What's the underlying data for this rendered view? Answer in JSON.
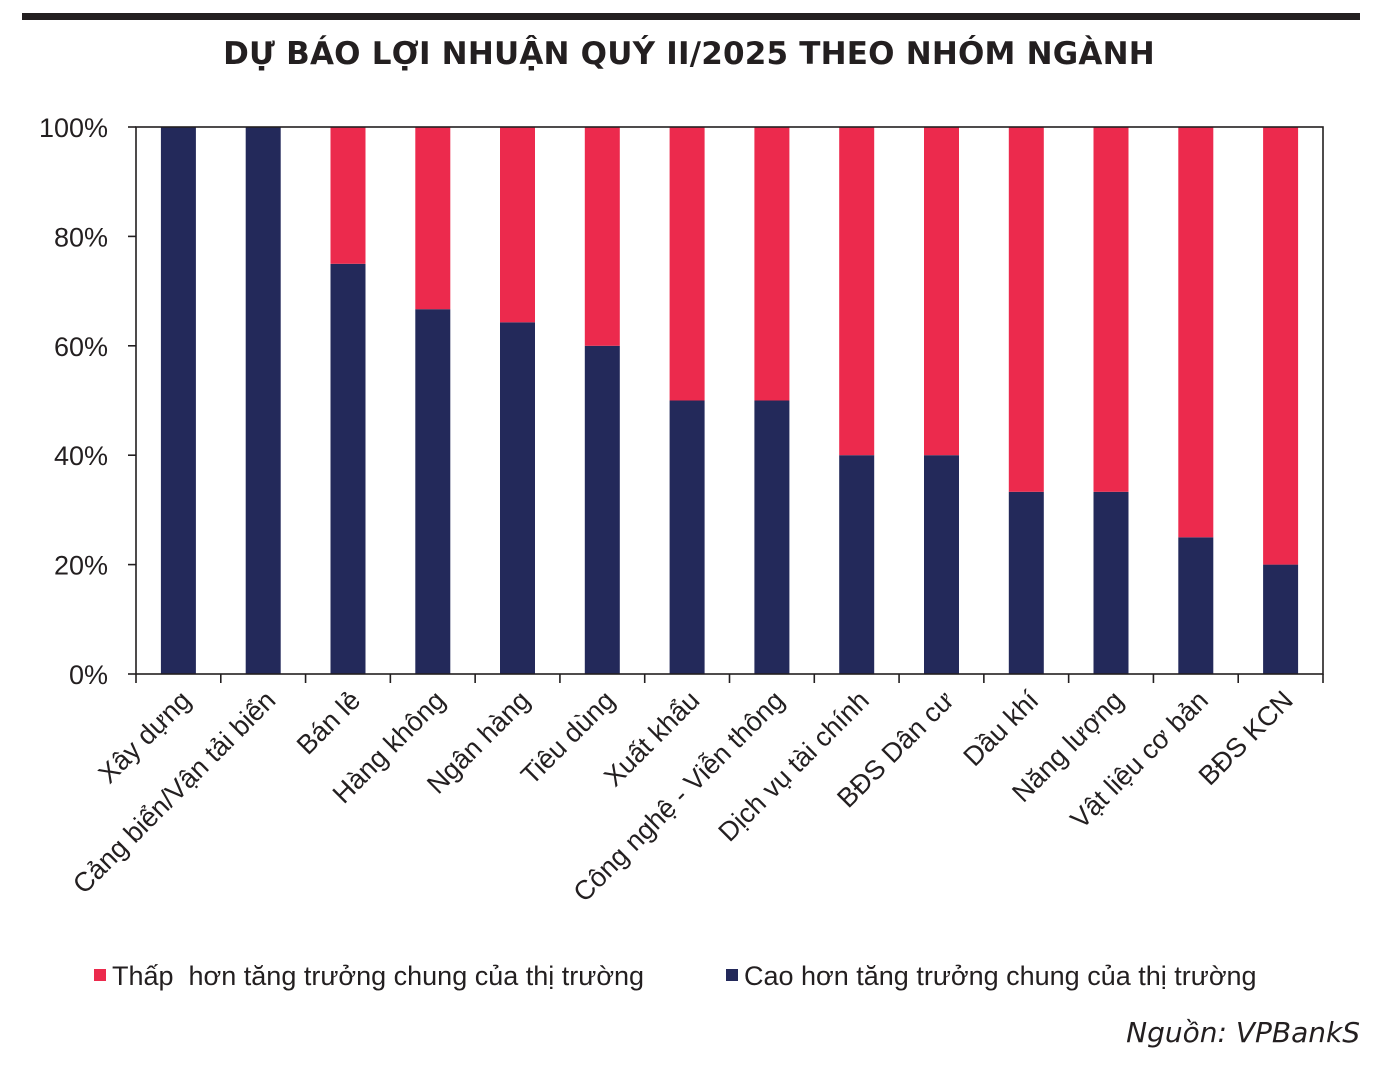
{
  "title": "DỰ BÁO LỢI NHUẬN QUÝ II/2025 THEO NHÓM NGÀNH",
  "source": "Nguồn: VPBankS",
  "colors": {
    "low": "#ec2a4d",
    "high": "#23295a",
    "axis": "#231f20"
  },
  "chart_data": {
    "type": "bar",
    "stacked": true,
    "categories": [
      "Xây dựng",
      "Cảng biển/Vận tải biển",
      "Bán lẻ",
      "Hàng không",
      "Ngân hàng",
      "Tiêu dùng",
      "Xuất khẩu",
      "Công nghệ - Viễn thông",
      "Dịch vụ tài chính",
      "BĐS Dân cư",
      "Dầu khí",
      "Năng lượng",
      "Vật liệu cơ bản",
      "BĐS KCN"
    ],
    "series": [
      {
        "name": "Cao hơn tăng trưởng chung của thị trường",
        "values": [
          100,
          100,
          75,
          66.7,
          64.3,
          60,
          50,
          50,
          40,
          40,
          33.3,
          33.3,
          25,
          20
        ]
      },
      {
        "name": "Thấp  hơn tăng trưởng chung của thị trường",
        "values": [
          0,
          0,
          25,
          33.3,
          35.7,
          40,
          50,
          50,
          60,
          60,
          66.7,
          66.7,
          75,
          80
        ]
      }
    ],
    "yticks": [
      "0%",
      "20%",
      "40%",
      "60%",
      "80%",
      "100%"
    ],
    "ylim": [
      0,
      100
    ],
    "grid": false,
    "legend": "bottom",
    "legend_order": [
      "Thấp  hơn tăng trưởng chung của thị trường",
      "Cao hơn tăng trưởng chung của thị trường"
    ]
  }
}
